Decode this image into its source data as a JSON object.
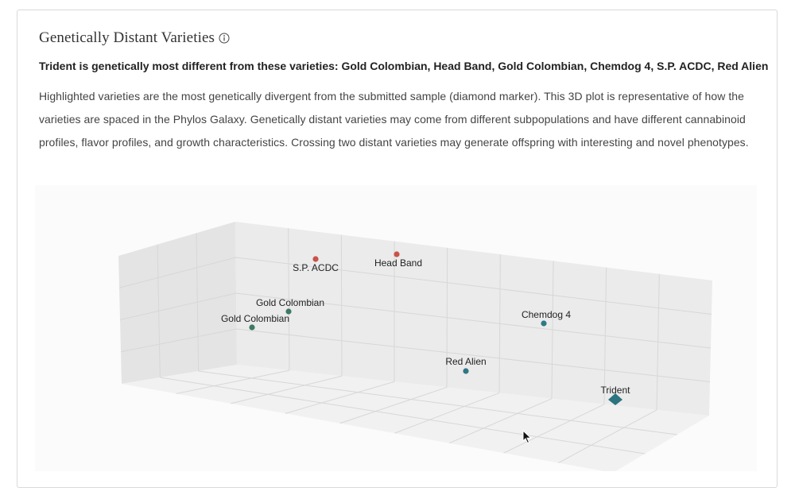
{
  "card": {
    "title": "Genetically Distant Varieties",
    "subtitle": "Trident is genetically most different from these varieties: Gold Colombian, Head Band, Gold Colombian, Chemdog 4, S.P. ACDC, Red Alien",
    "description": "Highlighted varieties are the most genetically divergent from the submitted sample (diamond marker). This 3D plot is representative of how the varieties are spaced in the Phylos Galaxy. Genetically distant varieties may come from different subpopulations and have different cannabinoid profiles, flavor profiles, and growth characteristics. Crossing two distant varieties may generate offspring with interesting and novel phenotypes."
  },
  "icons": {
    "info": "info-circle-icon",
    "cursor": "mouse-pointer-icon"
  },
  "colors": {
    "red_marker": "#c9524a",
    "green_marker": "#3d7a62",
    "teal_marker": "#2e7888",
    "sample_marker": "#2b7480"
  },
  "chart_data": {
    "type": "scatter",
    "dimensions": 3,
    "points": [
      {
        "label": "S.P. ACDC",
        "color": "#c9524a",
        "marker": "circle"
      },
      {
        "label": "Head Band",
        "color": "#c9524a",
        "marker": "circle"
      },
      {
        "label": "Gold Colombian",
        "color": "#3d7a62",
        "marker": "circle"
      },
      {
        "label": "Gold Colombian",
        "color": "#3d7a62",
        "marker": "circle"
      },
      {
        "label": "Chemdog 4",
        "color": "#2e7888",
        "marker": "circle"
      },
      {
        "label": "Red Alien",
        "color": "#2e7888",
        "marker": "circle"
      },
      {
        "label": "Trident",
        "color": "#2b7480",
        "marker": "diamond"
      }
    ],
    "grid": true,
    "axis_labels_shown": false
  }
}
